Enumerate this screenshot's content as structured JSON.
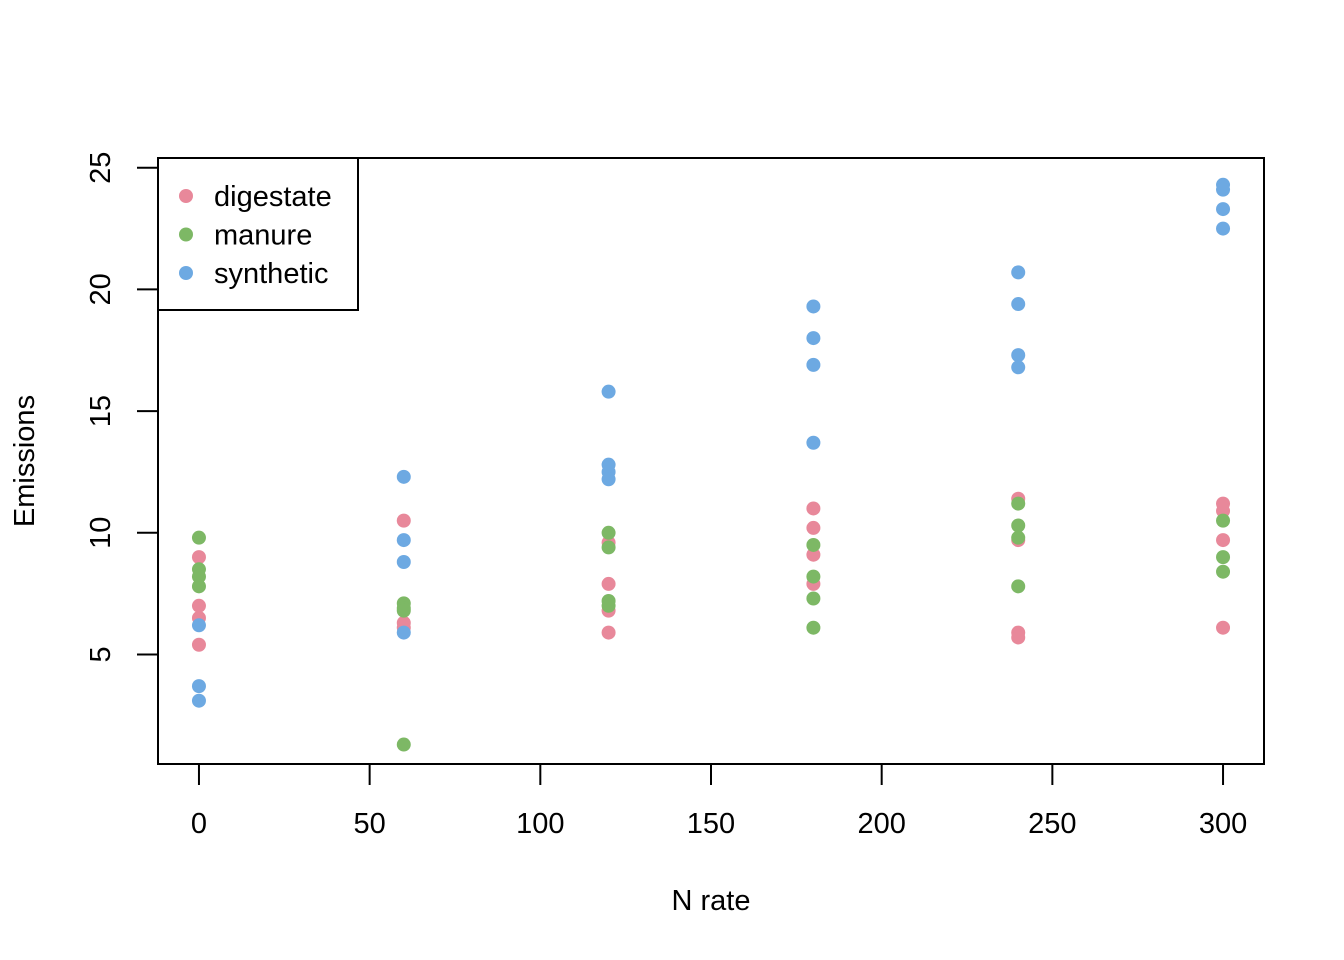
{
  "chart_data": {
    "type": "scatter",
    "title": "",
    "xlabel": "N rate",
    "ylabel": "Emissions",
    "xlim": [
      -12,
      312
    ],
    "ylim": [
      0.5,
      25.4
    ],
    "x_ticks": [
      0,
      50,
      100,
      150,
      200,
      250,
      300
    ],
    "y_ticks": [
      5,
      10,
      15,
      20,
      25
    ],
    "legend_position": "top-left",
    "grid": false,
    "series": [
      {
        "name": "digestate",
        "color": "#E8889A",
        "points": [
          [
            0,
            9.0
          ],
          [
            0,
            7.0
          ],
          [
            0,
            6.5
          ],
          [
            0,
            5.4
          ],
          [
            60,
            10.5
          ],
          [
            60,
            6.3
          ],
          [
            60,
            6.1
          ],
          [
            120,
            9.6
          ],
          [
            120,
            7.9
          ],
          [
            120,
            6.8
          ],
          [
            120,
            5.9
          ],
          [
            180,
            11.0
          ],
          [
            180,
            10.2
          ],
          [
            180,
            9.1
          ],
          [
            180,
            7.9
          ],
          [
            240,
            11.4
          ],
          [
            240,
            9.7
          ],
          [
            240,
            5.9
          ],
          [
            240,
            5.7
          ],
          [
            300,
            11.2
          ],
          [
            300,
            10.9
          ],
          [
            300,
            9.7
          ],
          [
            300,
            6.1
          ]
        ]
      },
      {
        "name": "manure",
        "color": "#7DB865",
        "points": [
          [
            0,
            9.8
          ],
          [
            0,
            8.5
          ],
          [
            0,
            8.2
          ],
          [
            0,
            7.8
          ],
          [
            60,
            7.1
          ],
          [
            60,
            6.9
          ],
          [
            60,
            6.8
          ],
          [
            60,
            1.3
          ],
          [
            120,
            10.0
          ],
          [
            120,
            9.4
          ],
          [
            120,
            7.2
          ],
          [
            120,
            7.0
          ],
          [
            180,
            9.5
          ],
          [
            180,
            8.2
          ],
          [
            180,
            7.3
          ],
          [
            180,
            6.1
          ],
          [
            240,
            11.2
          ],
          [
            240,
            10.3
          ],
          [
            240,
            9.8
          ],
          [
            240,
            7.8
          ],
          [
            300,
            10.5
          ],
          [
            300,
            9.0
          ],
          [
            300,
            8.4
          ]
        ]
      },
      {
        "name": "synthetic",
        "color": "#6DA9E2",
        "points": [
          [
            0,
            6.2
          ],
          [
            0,
            3.7
          ],
          [
            0,
            3.1
          ],
          [
            60,
            12.3
          ],
          [
            60,
            9.7
          ],
          [
            60,
            8.8
          ],
          [
            60,
            5.9
          ],
          [
            120,
            15.8
          ],
          [
            120,
            12.8
          ],
          [
            120,
            12.5
          ],
          [
            120,
            12.2
          ],
          [
            180,
            19.3
          ],
          [
            180,
            18.0
          ],
          [
            180,
            16.9
          ],
          [
            180,
            13.7
          ],
          [
            240,
            20.7
          ],
          [
            240,
            19.4
          ],
          [
            240,
            17.3
          ],
          [
            240,
            16.8
          ],
          [
            300,
            24.3
          ],
          [
            300,
            24.1
          ],
          [
            300,
            23.3
          ],
          [
            300,
            22.5
          ]
        ]
      }
    ]
  }
}
